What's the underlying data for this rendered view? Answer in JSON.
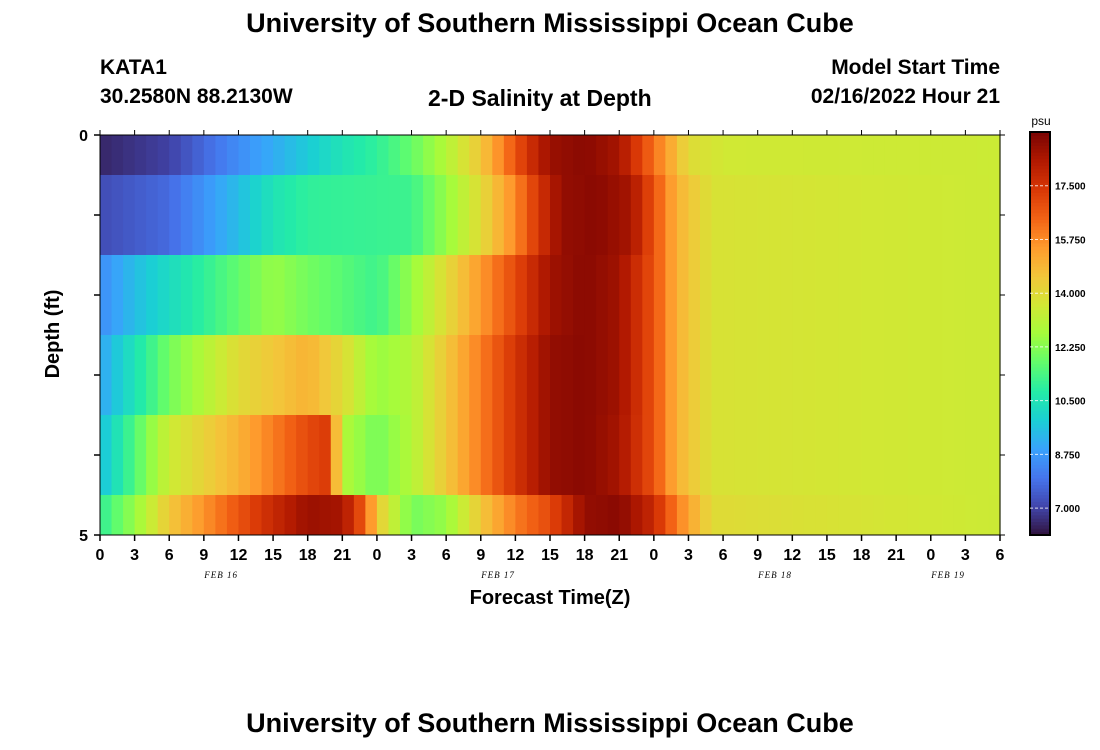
{
  "header": {
    "title": "University of Southern Mississippi Ocean Cube",
    "station_id": "KATA1",
    "station_coords": "30.2580N  88.2130W",
    "plot_title": "2-D Salinity at Depth",
    "model_start_label": "Model Start Time",
    "model_start_value": "02/16/2022 Hour 21"
  },
  "footer": {
    "title": "University of Southern Mississippi Ocean Cube"
  },
  "chart_data": {
    "type": "heatmap",
    "title": "2-D Salinity at Depth",
    "xlabel": "Forecast Time(Z)",
    "ylabel": "Depth (ft)",
    "units": "psu",
    "x_tick_labels": [
      "0",
      "3",
      "6",
      "9",
      "12",
      "15",
      "18",
      "21",
      "0",
      "3",
      "6",
      "9",
      "12",
      "15",
      "18",
      "21",
      "0",
      "3",
      "6",
      "9",
      "12",
      "15",
      "18",
      "21",
      "0",
      "3",
      "6"
    ],
    "date_labels": [
      {
        "label": "FEB 16",
        "tick_index": 3.5
      },
      {
        "label": "FEB 17",
        "tick_index": 11.5
      },
      {
        "label": "FEB 18",
        "tick_index": 19.5
      },
      {
        "label": "FEB 19",
        "tick_index": 24.5
      }
    ],
    "y_tick_labels": [
      "0",
      "5"
    ],
    "ylim": [
      0,
      5
    ],
    "colorbar": {
      "label": "psu",
      "range": [
        6.125,
        19.25
      ],
      "tick_labels": [
        "7.000",
        "8.750",
        "10.500",
        "12.250",
        "14.000",
        "15.750",
        "17.500"
      ],
      "tick_values": [
        7.0,
        8.75,
        10.5,
        12.25,
        14.0,
        15.75,
        17.5
      ],
      "colors": [
        "#30123b",
        "#4145ab",
        "#4675ed",
        "#39a2fc",
        "#1bcfd4",
        "#24eca6",
        "#61fc6c",
        "#a4fc3b",
        "#d1e834",
        "#f3c63a",
        "#fe9b2d",
        "#f36315",
        "#d93806",
        "#b11901",
        "#7a0402"
      ]
    },
    "layers": [
      {
        "depth_range": [
          0,
          0.5
        ],
        "anchors": [
          [
            0,
            6.5
          ],
          [
            6,
            7.0
          ],
          [
            12,
            8.5
          ],
          [
            18,
            9.8
          ],
          [
            21,
            10.5
          ],
          [
            24,
            11.0
          ],
          [
            27,
            11.8
          ],
          [
            30,
            13.0
          ],
          [
            33,
            14.5
          ],
          [
            35,
            16.0
          ],
          [
            37,
            17.5
          ],
          [
            39,
            18.7
          ],
          [
            42,
            19.0
          ],
          [
            45,
            18.5
          ],
          [
            47,
            17.0
          ],
          [
            49,
            15.5
          ],
          [
            51,
            14.0
          ],
          [
            54,
            13.6
          ],
          [
            78,
            13.5
          ]
        ]
      },
      {
        "depth_range": [
          0.5,
          1.5
        ],
        "anchors": [
          [
            0,
            7.2
          ],
          [
            6,
            7.8
          ],
          [
            12,
            9.5
          ],
          [
            15,
            10.5
          ],
          [
            18,
            11.0
          ],
          [
            27,
            11.2
          ],
          [
            30,
            12.5
          ],
          [
            33,
            14.0
          ],
          [
            36,
            15.8
          ],
          [
            38,
            17.5
          ],
          [
            40,
            18.8
          ],
          [
            43,
            19.0
          ],
          [
            46,
            18.5
          ],
          [
            48,
            16.8
          ],
          [
            50,
            15.0
          ],
          [
            53,
            13.8
          ],
          [
            78,
            13.5
          ]
        ]
      },
      {
        "depth_range": [
          1.5,
          2.5
        ],
        "anchors": [
          [
            0,
            8.5
          ],
          [
            3,
            9.5
          ],
          [
            9,
            11.0
          ],
          [
            15,
            12.5
          ],
          [
            18,
            12.0
          ],
          [
            24,
            11.2
          ],
          [
            27,
            12.5
          ],
          [
            30,
            14.0
          ],
          [
            33,
            15.5
          ],
          [
            36,
            17.0
          ],
          [
            39,
            18.6
          ],
          [
            42,
            19.0
          ],
          [
            45,
            18.6
          ],
          [
            48,
            16.8
          ],
          [
            50,
            15.0
          ],
          [
            53,
            13.8
          ],
          [
            78,
            13.5
          ]
        ]
      },
      {
        "depth_range": [
          2.5,
          3.5
        ],
        "anchors": [
          [
            0,
            9.0
          ],
          [
            3,
            10.5
          ],
          [
            6,
            12.0
          ],
          [
            12,
            14.0
          ],
          [
            18,
            15.0
          ],
          [
            21,
            14.0
          ],
          [
            24,
            12.5
          ],
          [
            27,
            13.0
          ],
          [
            30,
            14.5
          ],
          [
            33,
            16.0
          ],
          [
            36,
            17.5
          ],
          [
            39,
            18.8
          ],
          [
            42,
            19.0
          ],
          [
            45,
            18.6
          ],
          [
            48,
            16.8
          ],
          [
            50,
            15.0
          ],
          [
            53,
            13.8
          ],
          [
            78,
            13.5
          ]
        ]
      },
      {
        "depth_range": [
          3.5,
          4.5
        ],
        "anchors": [
          [
            0,
            9.5
          ],
          [
            3,
            11.5
          ],
          [
            6,
            13.5
          ],
          [
            12,
            15.0
          ],
          [
            15,
            16.0
          ],
          [
            18,
            17.0
          ],
          [
            19.7,
            17.3
          ],
          [
            20.3,
            15.5
          ],
          [
            21,
            13.0
          ],
          [
            24,
            12.0
          ],
          [
            27,
            13.0
          ],
          [
            30,
            14.5
          ],
          [
            33,
            16.0
          ],
          [
            36,
            17.5
          ],
          [
            39,
            18.8
          ],
          [
            42,
            19.0
          ],
          [
            45,
            18.5
          ],
          [
            48,
            16.8
          ],
          [
            50,
            15.0
          ],
          [
            53,
            13.8
          ],
          [
            78,
            13.5
          ]
        ]
      },
      {
        "depth_range": [
          4.5,
          5.0
        ],
        "anchors": [
          [
            0,
            11.0
          ],
          [
            3,
            12.5
          ],
          [
            6,
            14.5
          ],
          [
            10,
            16.0
          ],
          [
            14,
            17.5
          ],
          [
            18,
            18.7
          ],
          [
            21,
            18.5
          ],
          [
            23,
            16.5
          ],
          [
            24,
            14.5
          ],
          [
            27,
            12.0
          ],
          [
            30,
            12.5
          ],
          [
            33,
            14.5
          ],
          [
            36,
            16.0
          ],
          [
            39,
            17.0
          ],
          [
            42,
            18.8
          ],
          [
            45,
            19.0
          ],
          [
            48,
            17.8
          ],
          [
            50,
            16.0
          ],
          [
            53,
            14.0
          ],
          [
            78,
            13.5
          ]
        ]
      }
    ]
  }
}
